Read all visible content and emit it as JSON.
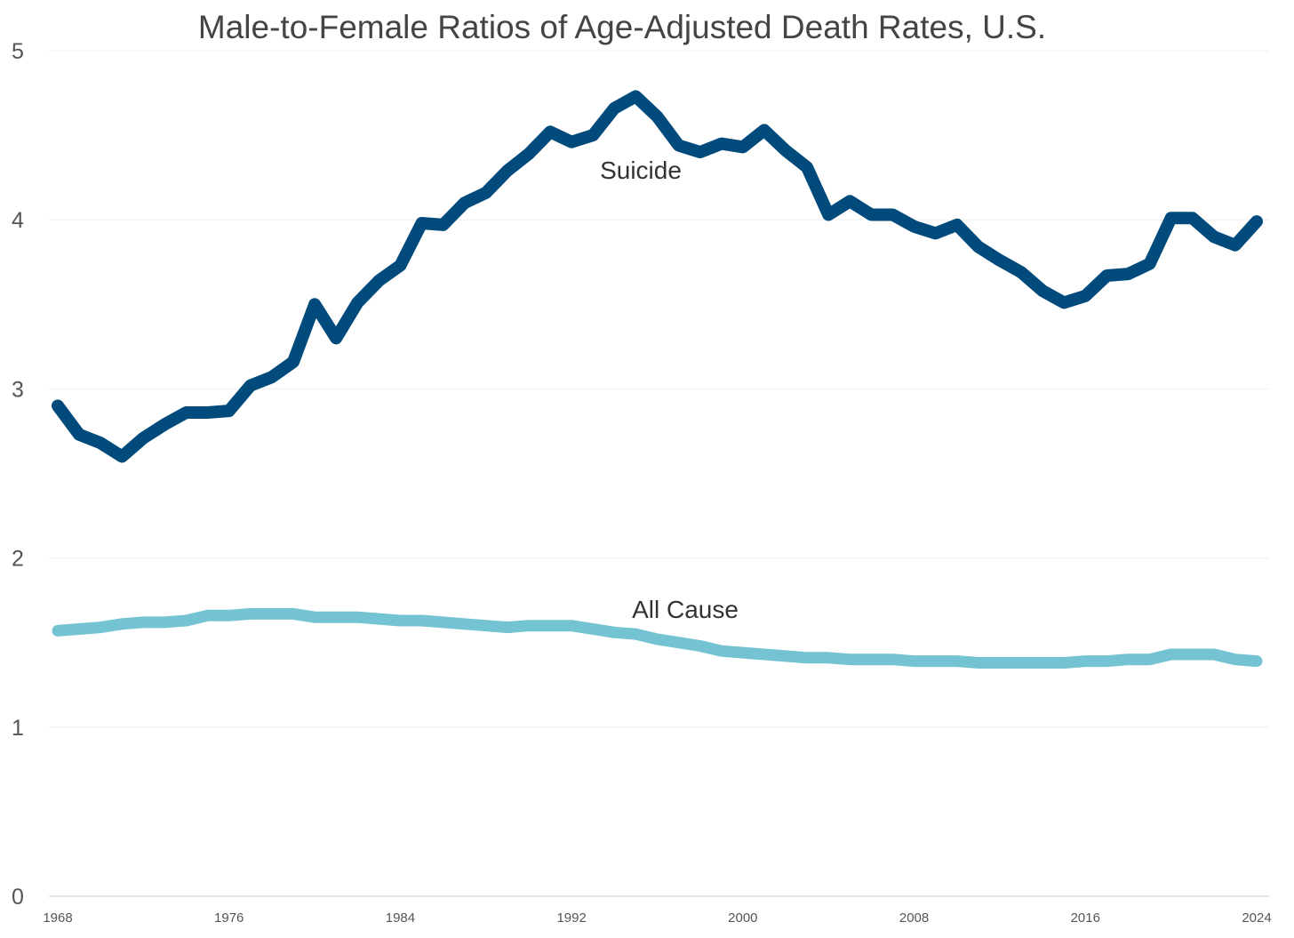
{
  "chart_data": {
    "type": "line",
    "title": "Male-to-Female Ratios of Age-Adjusted Death Rates, U.S.",
    "xlabel": "",
    "ylabel": "",
    "ylim": [
      0,
      5
    ],
    "yticks": [
      0,
      1,
      2,
      3,
      4,
      5
    ],
    "xlim": [
      1968,
      2024
    ],
    "xticks": [
      1968,
      1976,
      1984,
      1992,
      2000,
      2008,
      2016,
      2024
    ],
    "grid": true,
    "legend": "none (series labeled inline)",
    "x": [
      1968,
      1969,
      1970,
      1971,
      1972,
      1973,
      1974,
      1975,
      1976,
      1977,
      1978,
      1979,
      1980,
      1981,
      1982,
      1983,
      1984,
      1985,
      1986,
      1987,
      1988,
      1989,
      1990,
      1991,
      1992,
      1993,
      1994,
      1995,
      1996,
      1997,
      1998,
      1999,
      2000,
      2001,
      2002,
      2003,
      2004,
      2005,
      2006,
      2007,
      2008,
      2009,
      2010,
      2011,
      2012,
      2013,
      2014,
      2015,
      2016,
      2017,
      2018,
      2019,
      2020,
      2021,
      2022,
      2023,
      2024
    ],
    "series": [
      {
        "name": "Suicide",
        "color": "#004a7c",
        "values": [
          2.9,
          2.73,
          2.68,
          2.6,
          2.71,
          2.79,
          2.86,
          2.86,
          2.87,
          3.02,
          3.07,
          3.16,
          3.5,
          3.3,
          3.51,
          3.64,
          3.73,
          3.98,
          3.97,
          4.1,
          4.16,
          4.29,
          4.39,
          4.52,
          4.46,
          4.5,
          4.66,
          4.73,
          4.61,
          4.44,
          4.4,
          4.45,
          4.43,
          4.53,
          4.41,
          4.31,
          4.03,
          4.11,
          4.03,
          4.03,
          3.96,
          3.92,
          3.97,
          3.84,
          3.76,
          3.69,
          3.58,
          3.51,
          3.55,
          3.67,
          3.68,
          3.74,
          4.01,
          4.01,
          3.9,
          3.85,
          3.99
        ]
      },
      {
        "name": "All Cause",
        "color": "#74c3d3",
        "values": [
          1.57,
          1.58,
          1.59,
          1.61,
          1.62,
          1.62,
          1.63,
          1.66,
          1.66,
          1.67,
          1.67,
          1.67,
          1.65,
          1.65,
          1.65,
          1.64,
          1.63,
          1.63,
          1.62,
          1.61,
          1.6,
          1.59,
          1.6,
          1.6,
          1.6,
          1.58,
          1.56,
          1.55,
          1.52,
          1.5,
          1.48,
          1.45,
          1.44,
          1.43,
          1.42,
          1.41,
          1.41,
          1.4,
          1.4,
          1.4,
          1.39,
          1.39,
          1.39,
          1.38,
          1.38,
          1.38,
          1.38,
          1.38,
          1.39,
          1.39,
          1.4,
          1.4,
          1.43,
          1.43,
          1.43,
          1.4,
          1.39
        ]
      }
    ],
    "annotations": [
      {
        "text": "Suicide",
        "series": "Suicide"
      },
      {
        "text": "All Cause",
        "series": "All Cause"
      }
    ]
  }
}
